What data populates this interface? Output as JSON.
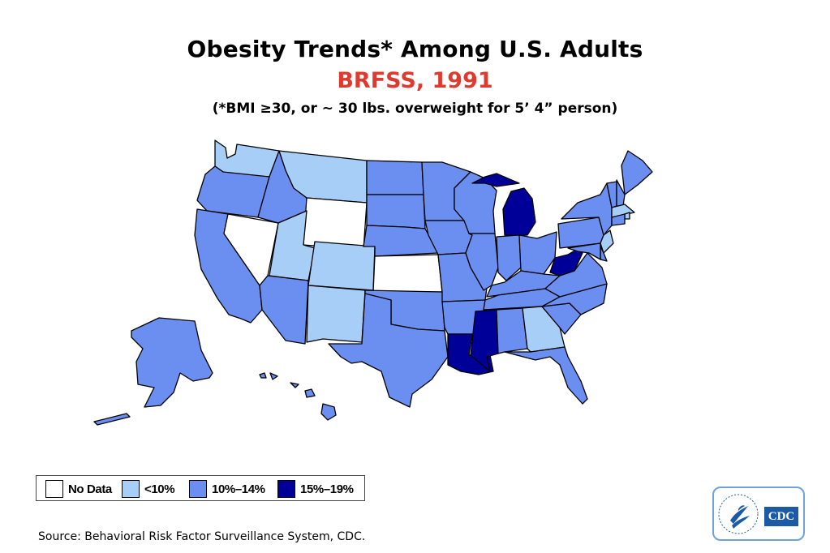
{
  "header": {
    "title": "Obesity Trends* Among U.S. Adults",
    "subtitle": "BRFSS, 1991",
    "note": "(*BMI ≥30, or ~ 30 lbs. overweight for 5’ 4” person)"
  },
  "colors": {
    "no_data": "#ffffff",
    "lt10": "#a6cef7",
    "p10_14": "#6a8ff0",
    "p15_19": "#000099",
    "title_accent": "#e03a2f",
    "border": "#000000"
  },
  "legend": [
    {
      "key": "no_data",
      "label": "No Data",
      "color": "#ffffff"
    },
    {
      "key": "lt10",
      "label": "<10%",
      "color": "#a6cef7"
    },
    {
      "key": "p10_14",
      "label": "10%–14%",
      "color": "#6a8ff0"
    },
    {
      "key": "p15_19",
      "label": "15%–19%",
      "color": "#000099"
    }
  ],
  "states": {
    "WA": "lt10",
    "OR": "p10_14",
    "CA": "p10_14",
    "NV": "no_data",
    "ID": "p10_14",
    "MT": "lt10",
    "WY": "no_data",
    "UT": "lt10",
    "AZ": "p10_14",
    "CO": "lt10",
    "NM": "lt10",
    "ND": "p10_14",
    "SD": "p10_14",
    "NE": "p10_14",
    "KS": "no_data",
    "OK": "p10_14",
    "TX": "p10_14",
    "MN": "p10_14",
    "IA": "p10_14",
    "MO": "p10_14",
    "AR": "p10_14",
    "LA": "p15_19",
    "WI": "p10_14",
    "IL": "p10_14",
    "MI": "p15_19",
    "IN": "p10_14",
    "OH": "p10_14",
    "KY": "p10_14",
    "TN": "p10_14",
    "MS": "p15_19",
    "AL": "p10_14",
    "GA": "lt10",
    "FL": "p10_14",
    "SC": "p10_14",
    "NC": "p10_14",
    "VA": "p10_14",
    "WV": "p15_19",
    "PA": "p10_14",
    "NY": "p10_14",
    "VT": "p10_14",
    "NH": "p10_14",
    "ME": "p10_14",
    "MA": "lt10",
    "RI": "lt10",
    "CT": "p10_14",
    "NJ": "lt10",
    "DE": "p10_14",
    "MD": "p10_14",
    "AK": "p10_14",
    "HI": "p10_14"
  },
  "source": "Source: Behavioral Risk Factor Surveillance System, CDC.",
  "logo": {
    "text": "CDC"
  }
}
